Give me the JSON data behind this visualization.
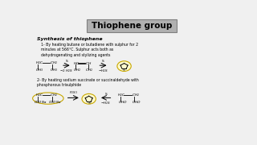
{
  "title": "Thiophene group",
  "bg_color": "#f0f0f0",
  "subtitle": "Synthesis of thiophene",
  "reaction1_text": "1- By heating butane or butadiene with sulphur for 2\nminutes at 566°C. Sulphur acts both as\ndehydrogenating and stylizing agents",
  "reaction2_text": "2- By heating sodium succinate or succinaldehyde with\nphosphorous trisulphide"
}
